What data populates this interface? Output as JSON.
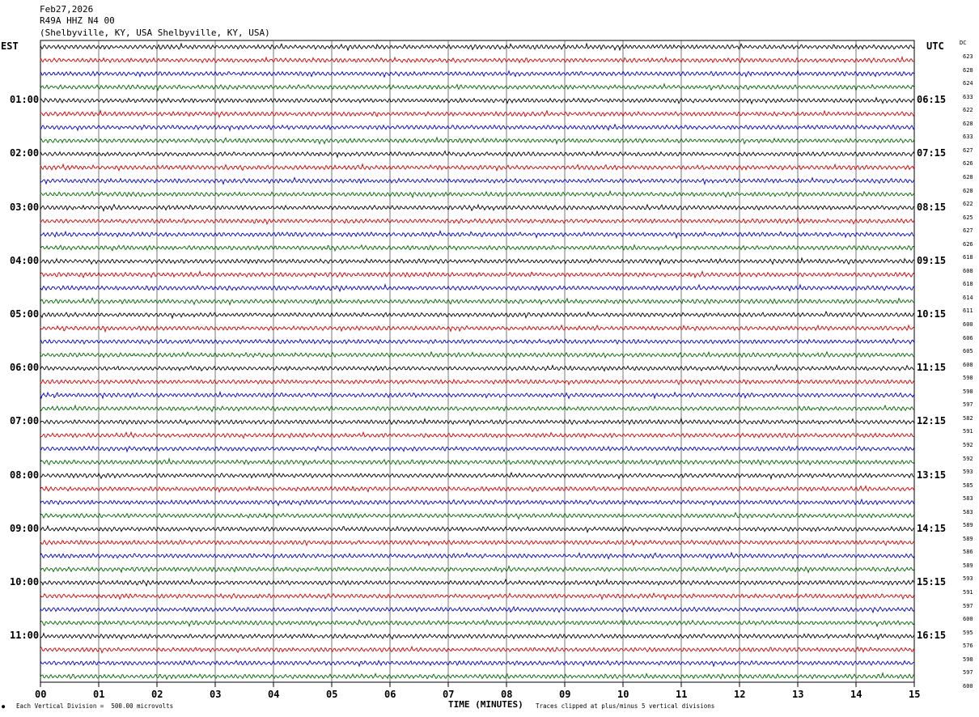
{
  "header": {
    "date": "Feb27,2026",
    "station": "R49A HHZ N4 00",
    "location": "(Shelbyville, KY, USA Shelbyville, KY, USA)"
  },
  "left_tz": "EST",
  "right_tz": "UTC",
  "dc_label": "DC",
  "footer": {
    "scale": "Each Vertical Division =  500.00 microvolts",
    "clip": "Traces clipped at plus/minus 5 vertical divisions",
    "mark": "●"
  },
  "chart_data": {
    "type": "line",
    "title": "",
    "xlabel": "TIME (MINUTES)",
    "x_ticks": [
      "00",
      "01",
      "02",
      "03",
      "04",
      "05",
      "06",
      "07",
      "08",
      "09",
      "10",
      "11",
      "12",
      "13",
      "14",
      "15"
    ],
    "xlim": [
      0,
      15
    ],
    "trace_minutes": 15,
    "traces_per_hour": 4,
    "trace_colors": [
      "#000000",
      "#d40000",
      "#0000c8",
      "#006400"
    ],
    "left_hour_labels": [
      "",
      "01:00",
      "02:00",
      "03:00",
      "04:00",
      "05:00",
      "06:00",
      "07:00",
      "08:00",
      "09:00",
      "10:00",
      "11:00"
    ],
    "right_hour_labels": [
      "",
      "06:15",
      "07:15",
      "08:15",
      "09:15",
      "10:15",
      "11:15",
      "12:15",
      "13:15",
      "14:15",
      "15:15",
      "16:15"
    ],
    "dc_offsets": [
      623,
      628,
      624,
      633,
      622,
      628,
      633,
      627,
      626,
      628,
      628,
      622,
      625,
      627,
      626,
      618,
      608,
      618,
      614,
      611,
      600,
      606,
      605,
      608,
      598,
      598,
      597,
      582,
      591,
      592,
      592,
      593,
      585,
      583,
      583,
      589,
      589,
      586,
      589,
      593,
      591,
      597,
      600,
      595,
      576,
      598,
      597,
      600
    ],
    "grid": true
  }
}
